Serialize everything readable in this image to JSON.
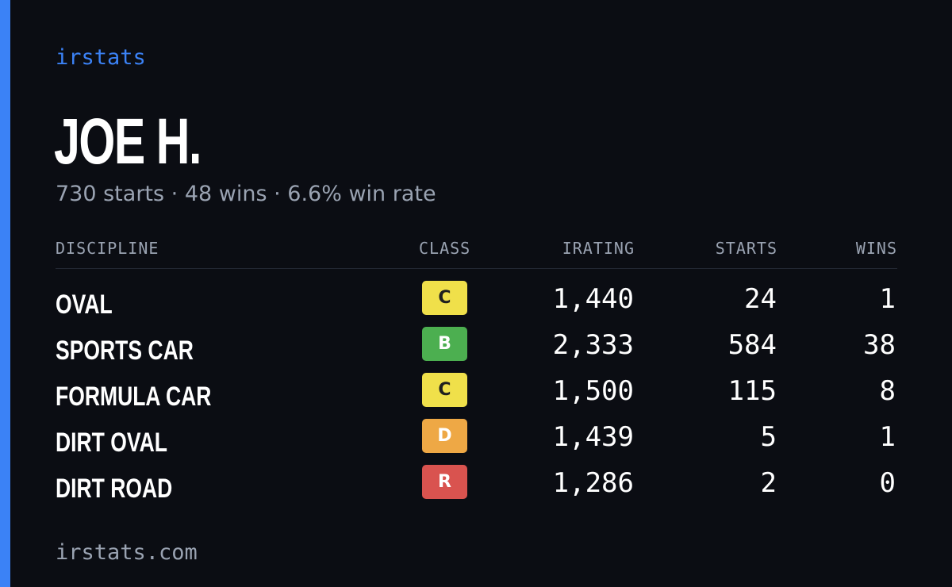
{
  "brand": "irstats",
  "player": {
    "name": "JOE H.",
    "summary": "730 starts · 48 wins · 6.6% win rate"
  },
  "table": {
    "headers": {
      "discipline": "DISCIPLINE",
      "class": "CLASS",
      "irating": "IRATING",
      "starts": "STARTS",
      "wins": "WINS"
    },
    "rows": [
      {
        "discipline": "OVAL",
        "class": "C",
        "irating": "1,440",
        "starts": "24",
        "wins": "1"
      },
      {
        "discipline": "SPORTS CAR",
        "class": "B",
        "irating": "2,333",
        "starts": "584",
        "wins": "38"
      },
      {
        "discipline": "FORMULA CAR",
        "class": "C",
        "irating": "1,500",
        "starts": "115",
        "wins": "8"
      },
      {
        "discipline": "DIRT OVAL",
        "class": "D",
        "irating": "1,439",
        "starts": "5",
        "wins": "1"
      },
      {
        "discipline": "DIRT ROAD",
        "class": "R",
        "irating": "1,286",
        "starts": "2",
        "wins": "0"
      }
    ]
  },
  "footer": {
    "url": "irstats.com"
  },
  "colors": {
    "background": "#0b0d13",
    "accent": "#3b82f6",
    "muted_text": "#9aa3b2",
    "class_c": "#f0e04a",
    "class_b": "#4caf50",
    "class_d": "#eea845",
    "class_r": "#d9534f"
  }
}
